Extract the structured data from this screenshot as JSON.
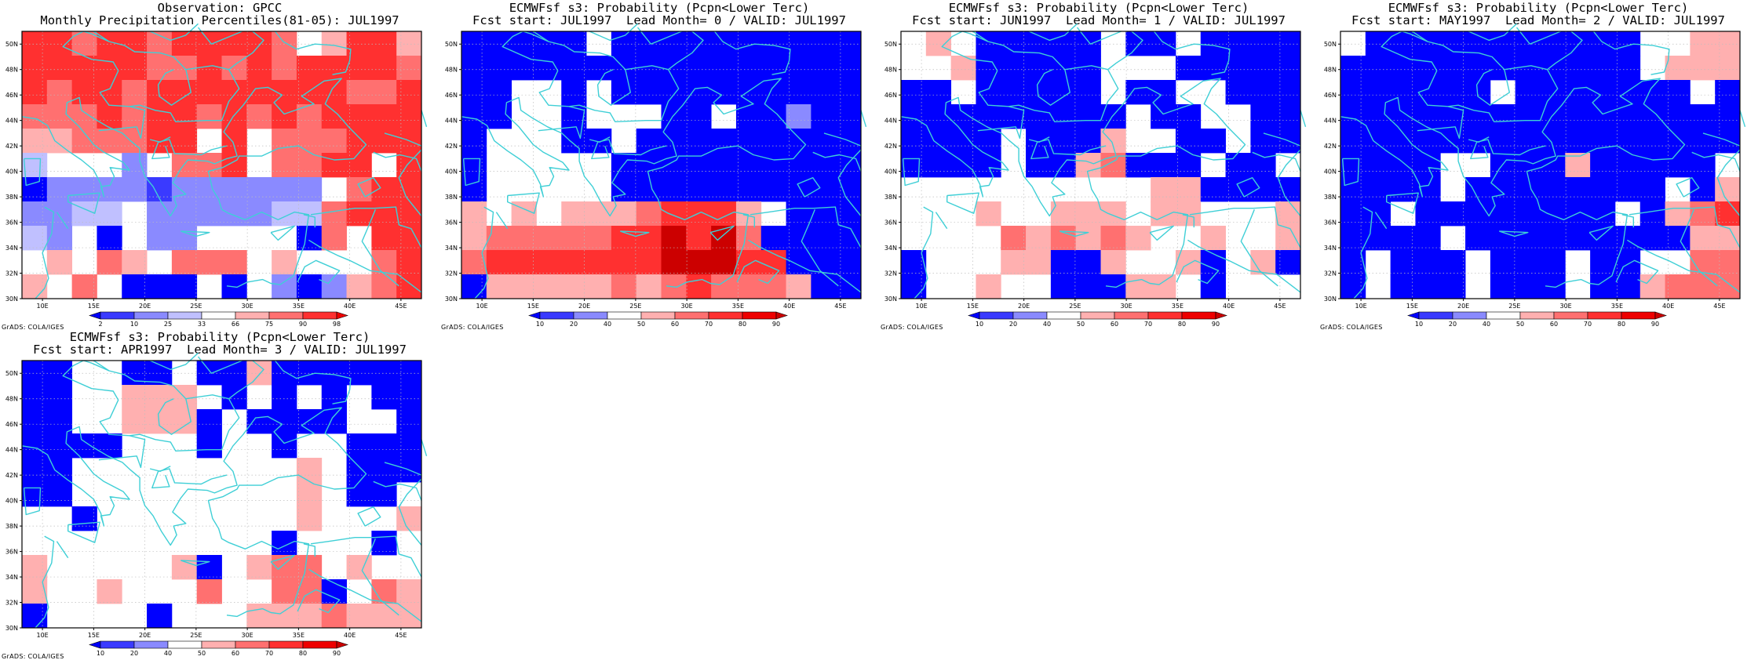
{
  "credit": "GrADS: COLA/IGES",
  "lat_labels": [
    "30N",
    "32N",
    "34N",
    "36N",
    "38N",
    "40N",
    "42N",
    "44N",
    "46N",
    "48N",
    "50N"
  ],
  "lon_labels": [
    "10E",
    "15E",
    "20E",
    "25E",
    "30E",
    "35E",
    "40E",
    "45E"
  ],
  "extent": {
    "lon_min": 8,
    "lon_max": 47,
    "lat_min": 30,
    "lat_max": 51
  },
  "colors": {
    "coast": "#3fcfd6",
    "blues": [
      "#0000ff",
      "#3a3aff",
      "#8a8aff",
      "#c0c0ff"
    ],
    "reds": [
      "#ffb0b0",
      "#ff7070",
      "#ff3030",
      "#ee0000",
      "#cc0000",
      "#990000"
    ]
  },
  "panels": [
    {
      "id": "obs",
      "title1": "Observation: GPCC",
      "title2": "Monthly Precipitation Percentiles(81-05): JUL1997",
      "colorbar": {
        "labels": [
          "2",
          "10",
          "25",
          "33",
          "66",
          "75",
          "90",
          "98"
        ],
        "colors": [
          "#0000ff",
          "#3a3aff",
          "#8a8aff",
          "#c0c0ff",
          "#ffffff",
          "#ffb0b0",
          "#ff7070",
          "#ff3030",
          "#ee0000"
        ]
      },
      "grid": [
        "RRrRRrRRRRr.qRRq",
        "RRRRRrrRrRrRRRRr",
        "RrRRrRRRRRRRRrrR",
        "rrrRrRRrRrRrRRRR",
        "qqrrrRR.R.rrrRRR",
        "c...b.rrR.rrRR.R",
        "AbbbbBbbbbbb.rRR",
        "bbcc.bbbbbccrRRR",
        "cb.A.bb....Ar.RR",
        ".q.rq.rrr.q...rR",
        "q.r.AAA.A.bAbqrR"
      ]
    },
    {
      "id": "lead0",
      "title1": "ECMWFsf s3: Probability (Pcpn<Lower Terc)",
      "title2": "Fcst start: JUL1997  Lead Month= 0 / VALID: JUL1997",
      "colorbar": {
        "labels": [
          "10",
          "20",
          "40",
          "50",
          "60",
          "70",
          "80",
          "90"
        ],
        "colors": [
          "#0000ff",
          "#3a3aff",
          "#8a8aff",
          "#ffffff",
          "#ffb0b0",
          "#ff7070",
          "#ff3030",
          "#ee0000",
          "#cc0000"
        ]
      },
      "grid": [
        "AAAAA.AAAAAAAAAA",
        "AAAAAAAAAAAAAAAA",
        "AA..A.AAAAAAAAAA",
        "AA..A...AA.AAbAA",
        "A...AA.AAAAAAAAA",
        "A.....AAAAAAAAAA",
        "A.....AAAAAAAAAA",
        "q.q.qqqrRRRq.AAA",
        "qrrrrrRRMRMrAAAA",
        "rRRRRRRRMMMRRAAA",
        "AqqqqqrqrRrrrqAA"
      ]
    },
    {
      "id": "lead1",
      "title1": "ECMWFsf s3: Probability (Pcpn<Lower Terc)",
      "title2": "Fcst start: JUN1997  Lead Month= 1 / VALID: JUL1997",
      "colorbar": {
        "labels": [
          "10",
          "20",
          "40",
          "50",
          "60",
          "70",
          "80",
          "90"
        ],
        "colors": [
          "#0000ff",
          "#3a3aff",
          "#8a8aff",
          "#ffffff",
          "#ffb0b0",
          "#ff7070",
          "#ff3030",
          "#ee0000",
          "#cc0000"
        ]
      },
      "grid": [
        ".q.AAAAA.AA.AAAA",
        "..qAAAAA...AAAAA",
        "AA.AAAAA.AA..AAA",
        "AAAAAAAAA.AA..AA",
        "AAAA.AAAq..AA.AA",
        "AAAA.AAqrAAA.AA.",
        "..........qqAAAA",
        "...q..qqq.qq...q",
        "....rqrqrq..q..q",
        "A...qqAAq..qA.qA",
        "A..q..AAAqq.A..."
      ]
    },
    {
      "id": "lead2",
      "title1": "ECMWFsf s3: Probability (Pcpn<Lower Terc)",
      "title2": "Fcst start: MAY1997  Lead Month= 2 / VALID: JUL1997",
      "colorbar": {
        "labels": [
          "10",
          "20",
          "40",
          "50",
          "60",
          "70",
          "80",
          "90"
        ],
        "colors": [
          "#0000ff",
          "#3a3aff",
          "#8a8aff",
          "#ffffff",
          "#ffb0b0",
          "#ff7070",
          "#ff3030",
          "#ee0000",
          "#cc0000"
        ]
      },
      "grid": [
        ".AAAAAAAAAAA..qq",
        "AAAAAAAAAAAA.qqq",
        "AAAAAA.AAAAAAA.A",
        "AAAAAAAAAAAAAAAA",
        "AAAAAAAAAAAAAAAA",
        "AAAA..AAAqAAAAA.",
        "AAAA.AAAAAAAA.Aq",
        "AA.AAAAAAAA.AqrR",
        "AAAA.AAAAAAAAAqq",
        "A.AAA.AAA.AA..rr",
        "A.AAA.AAA.AAqrrr"
      ]
    },
    {
      "id": "lead3",
      "title1": "ECMWFsf s3: Probability (Pcpn<Lower Terc)",
      "title2": "Fcst start: APR1997  Lead Month= 3 / VALID: JUL1997",
      "colorbar": {
        "labels": [
          "10",
          "20",
          "40",
          "50",
          "60",
          "70",
          "80",
          "90"
        ],
        "colors": [
          "#0000ff",
          "#3a3aff",
          "#8a8aff",
          "#ffffff",
          "#ffb0b0",
          "#ff7070",
          "#ff3030",
          "#ee0000",
          "#cc0000"
        ]
      },
      "grid": [
        "AA..AA.AAqAAAAAA",
        "AA..qqq.A.A.A.AA",
        "AA..qqqA.AAAA..A",
        "AAAA...A..A..AAA",
        "AA.........q.AAA",
        "AA.........q.AA.",
        "..A........q...q",
        "..........A...A.",
        "q.....qA.qrr.q..",
        "q..q...r..rrA.rq",
        "A....A...qqqrqqq"
      ]
    }
  ]
}
